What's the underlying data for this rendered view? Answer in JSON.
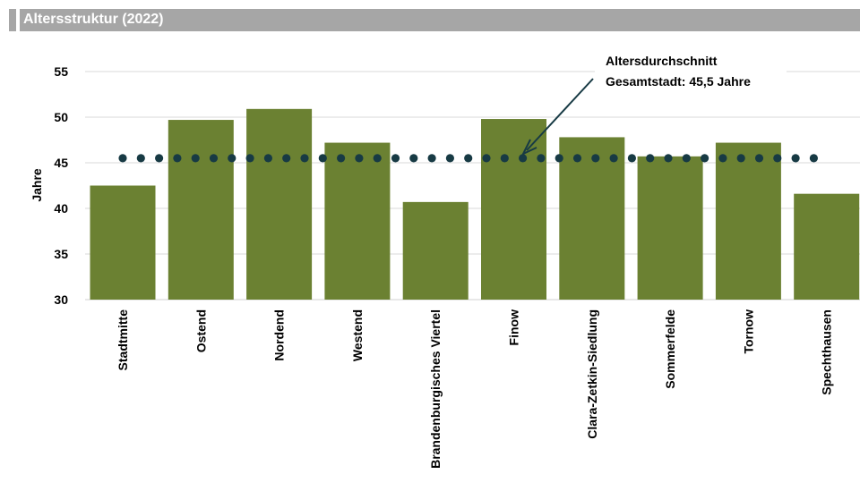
{
  "title": "Altersstruktur (2022)",
  "chart_data": {
    "type": "bar",
    "categories": [
      "Stadtmitte",
      "Ostend",
      "Nordend",
      "Westend",
      "Brandenburgisches Viertel",
      "Finow",
      "Clara-Zetkin-Siedlung",
      "Sommerfelde",
      "Tornow",
      "Spechthausen"
    ],
    "values": [
      42.5,
      49.7,
      50.9,
      47.2,
      40.7,
      49.8,
      47.8,
      45.7,
      47.2,
      41.6
    ],
    "ylabel": "Jahre",
    "ylim": [
      30,
      55
    ],
    "yticks": [
      "30",
      "35",
      "40",
      "45",
      "50",
      "55"
    ],
    "grid": true,
    "bar_color": "#6b8132",
    "reference_line": {
      "value": 45.5,
      "style": "dotted",
      "color": "#173a44"
    },
    "annotation": {
      "lines": [
        "Altersdurchschnitt",
        "Gesamtstadt: 45,5 Jahre"
      ]
    }
  }
}
